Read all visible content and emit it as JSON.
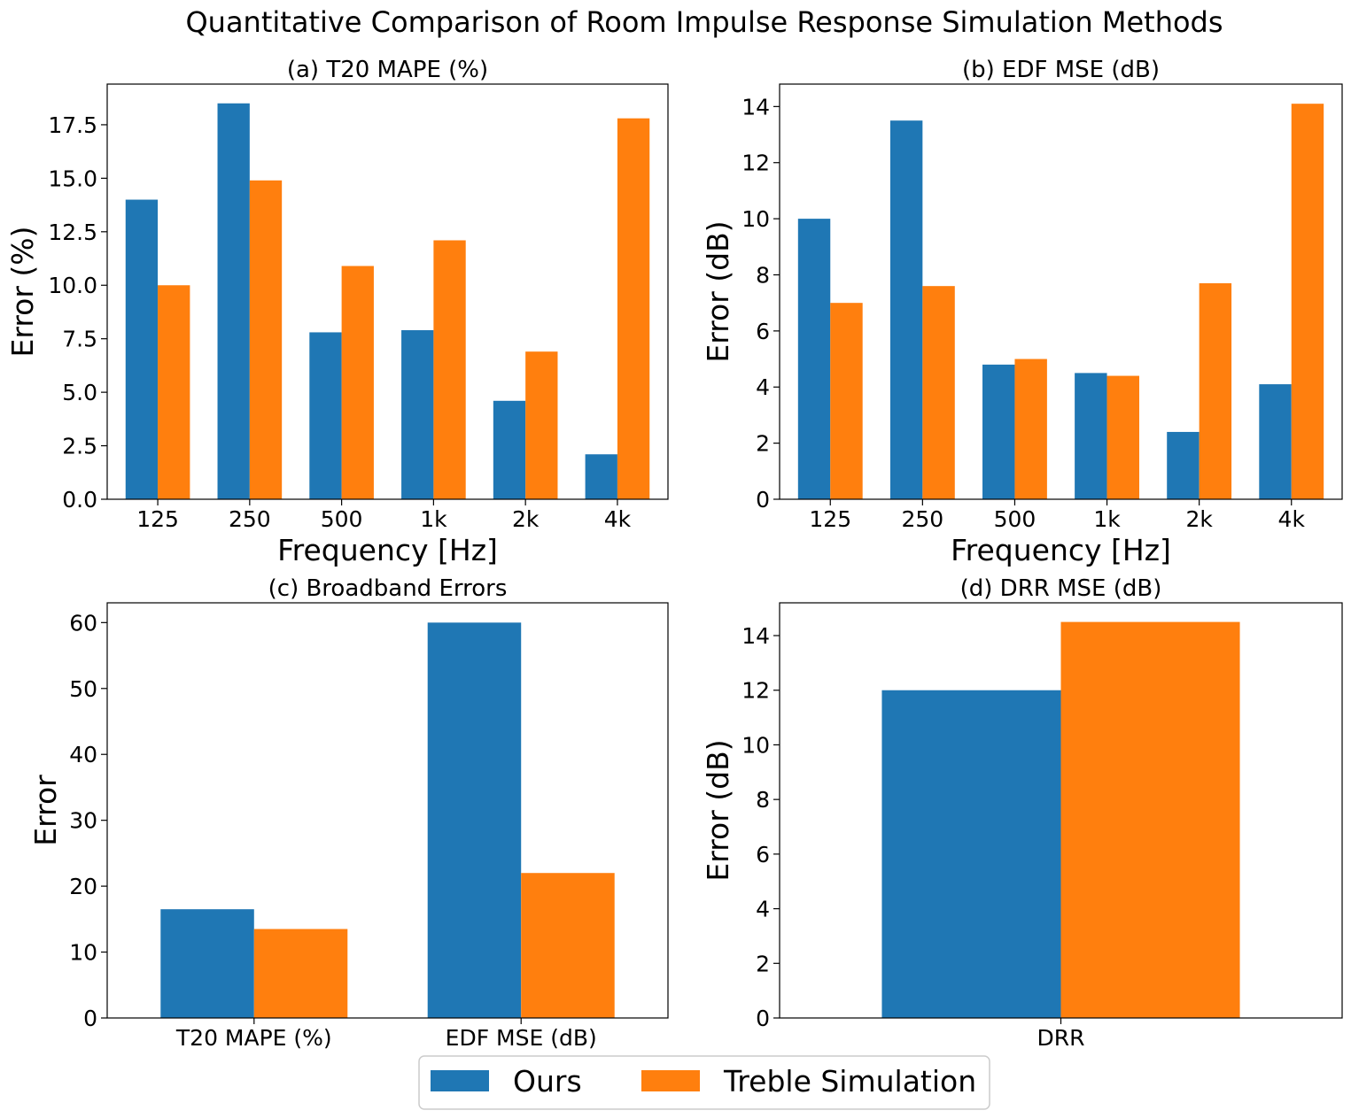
{
  "figure": {
    "suptitle": "Quantitative Comparison of Room Impulse Response Simulation Methods"
  },
  "legend": {
    "entries": [
      {
        "label": "Ours",
        "color": "#1f77b4"
      },
      {
        "label": "Treble Simulation",
        "color": "#ff7f0e"
      }
    ]
  },
  "colors": {
    "ours": "#1f77b4",
    "treble": "#ff7f0e"
  },
  "chart_data": [
    {
      "type": "bar",
      "title": "(a) T20 MAPE (%)",
      "xlabel": "Frequency [Hz]",
      "ylabel": "Error (%)",
      "categories": [
        "125",
        "250",
        "500",
        "1k",
        "2k",
        "4k"
      ],
      "ylim": [
        0,
        19.4
      ],
      "yticks": [
        0,
        2.5,
        5,
        7.5,
        10,
        12.5,
        15,
        17.5
      ],
      "ytick_labels": [
        "0.0",
        "2.5",
        "5.0",
        "7.5",
        "10.0",
        "12.5",
        "15.0",
        "17.5"
      ],
      "series": [
        {
          "name": "Ours",
          "values": [
            14.0,
            18.5,
            7.8,
            7.9,
            4.6,
            2.1
          ]
        },
        {
          "name": "Treble Simulation",
          "values": [
            10.0,
            14.9,
            10.9,
            12.1,
            6.9,
            17.8
          ]
        }
      ]
    },
    {
      "type": "bar",
      "title": "(b) EDF MSE (dB)",
      "xlabel": "Frequency [Hz]",
      "ylabel": "Error (dB)",
      "categories": [
        "125",
        "250",
        "500",
        "1k",
        "2k",
        "4k"
      ],
      "ylim": [
        0,
        14.8
      ],
      "yticks": [
        0,
        2,
        4,
        6,
        8,
        10,
        12,
        14
      ],
      "ytick_labels": [
        "0",
        "2",
        "4",
        "6",
        "8",
        "10",
        "12",
        "14"
      ],
      "series": [
        {
          "name": "Ours",
          "values": [
            10.0,
            13.5,
            4.8,
            4.5,
            2.4,
            4.1
          ]
        },
        {
          "name": "Treble Simulation",
          "values": [
            7.0,
            7.6,
            5.0,
            4.4,
            7.7,
            14.1
          ]
        }
      ]
    },
    {
      "type": "bar",
      "title": "(c) Broadband Errors",
      "xlabel": "",
      "ylabel": "Error",
      "categories": [
        "T20 MAPE (%)",
        "EDF MSE (dB)"
      ],
      "ylim": [
        0,
        63
      ],
      "yticks": [
        0,
        10,
        20,
        30,
        40,
        50,
        60
      ],
      "ytick_labels": [
        "0",
        "10",
        "20",
        "30",
        "40",
        "50",
        "60"
      ],
      "series": [
        {
          "name": "Ours",
          "values": [
            16.5,
            60.0
          ]
        },
        {
          "name": "Treble Simulation",
          "values": [
            13.5,
            22.0
          ]
        }
      ]
    },
    {
      "type": "bar",
      "title": "(d) DRR MSE (dB)",
      "xlabel": "",
      "ylabel": "Error (dB)",
      "categories": [
        "DRR"
      ],
      "ylim": [
        0,
        15.2
      ],
      "yticks": [
        0,
        2,
        4,
        6,
        8,
        10,
        12,
        14
      ],
      "ytick_labels": [
        "0",
        "2",
        "4",
        "6",
        "8",
        "10",
        "12",
        "14"
      ],
      "series": [
        {
          "name": "Ours",
          "values": [
            12.0
          ]
        },
        {
          "name": "Treble Simulation",
          "values": [
            14.5
          ]
        }
      ]
    }
  ]
}
